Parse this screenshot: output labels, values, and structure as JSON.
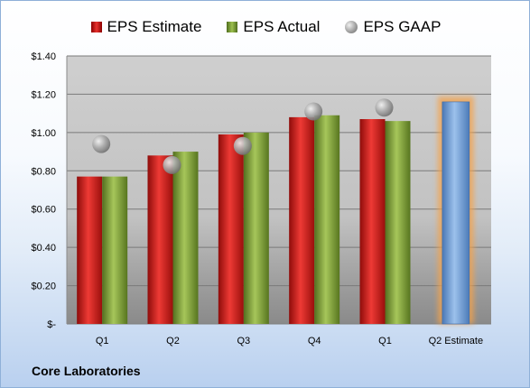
{
  "chart_data": {
    "type": "bar",
    "categories": [
      "Q1",
      "Q2",
      "Q3",
      "Q4",
      "Q1",
      "Q2 Estimate"
    ],
    "series": [
      {
        "name": "EPS Estimate",
        "values": [
          0.77,
          0.88,
          0.99,
          1.08,
          1.07,
          null
        ]
      },
      {
        "name": "EPS Actual",
        "values": [
          0.77,
          0.9,
          1.0,
          1.09,
          1.06,
          null
        ]
      },
      {
        "name": "EPS GAAP",
        "values": [
          0.94,
          0.83,
          0.93,
          1.11,
          1.13,
          null
        ]
      }
    ],
    "forecast": {
      "category": "Q2 Estimate",
      "value": 1.16
    },
    "y_ticks": [
      "$-",
      "$0.20",
      "$0.40",
      "$0.60",
      "$0.80",
      "$1.00",
      "$1.20",
      "$1.40"
    ],
    "ylim": [
      0,
      1.4
    ],
    "grid": true,
    "legend": "top",
    "colors": {
      "estimate": "#d42a26",
      "actual": "#86a843",
      "gaap": "#9b9b9b",
      "forecast": "#7aa3d6",
      "forecast_glow": "#f4a24a"
    }
  },
  "company_name": "Core Laboratories"
}
